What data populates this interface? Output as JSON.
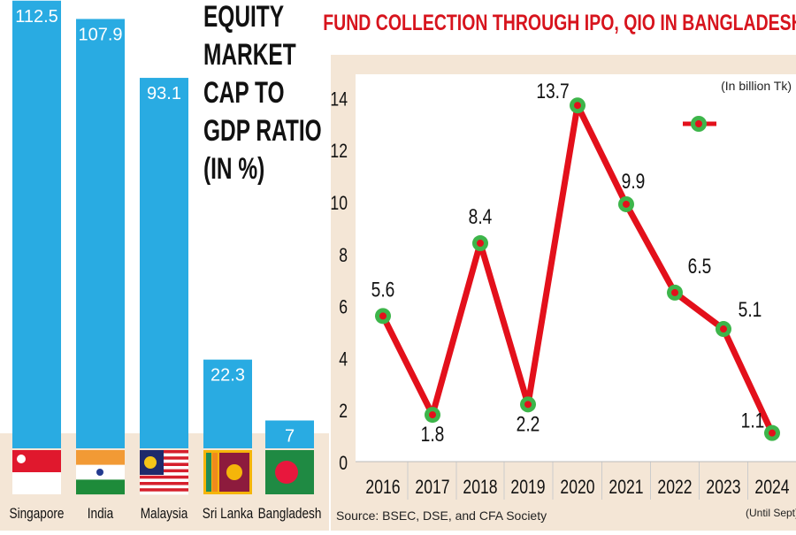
{
  "chart_data": [
    {
      "type": "bar",
      "title": "EQUITY MARKET CAP TO GDP RATIO (IN %)",
      "title_lines": [
        "EQUITY",
        "MARKET",
        "CAP TO",
        "GDP RATIO",
        "(IN %)"
      ],
      "categories": [
        "Singapore",
        "India",
        "Malaysia",
        "Sri Lanka",
        "Bangladesh"
      ],
      "values": [
        112.5,
        107.9,
        93.1,
        22.3,
        7
      ],
      "value_labels": [
        "112.5",
        "107.9",
        "93.1",
        "22.3",
        "7"
      ],
      "flag_icons": [
        "singapore-flag-icon",
        "india-flag-icon",
        "malaysia-flag-icon",
        "sri-lanka-flag-icon",
        "bangladesh-flag-icon"
      ],
      "bar_color": "#29abe2"
    },
    {
      "type": "line",
      "title": "FUND COLLECTION THROUGH IPO, QIO IN BANGLADESH",
      "unit_note": "(In billion Tk)",
      "x": [
        "2016",
        "2017",
        "2018",
        "2019",
        "2020",
        "2021",
        "2022",
        "2023",
        "2024"
      ],
      "x_note": "(Until Sept)",
      "y": [
        5.6,
        1.8,
        8.4,
        2.2,
        13.7,
        9.9,
        6.5,
        5.1,
        1.1
      ],
      "y_labels": [
        "5.6",
        "1.8",
        "8.4",
        "2.2",
        "13.7",
        "9.9",
        "6.5",
        "5.1",
        "1.1"
      ],
      "ylim": [
        0,
        14
      ],
      "yticks": [
        "0",
        "2",
        "4",
        "6",
        "8",
        "10",
        "12",
        "14"
      ],
      "grid": "vertical separators between years",
      "legend": "top-right marker (green circle with red dot on red line)",
      "line_color": "#e3101b",
      "marker_color": "#3db54a",
      "source": "Source: BSEC, DSE, and CFA Society"
    }
  ],
  "colors": {
    "title_red": "#d7141d",
    "beige": "#f4e6d6"
  }
}
